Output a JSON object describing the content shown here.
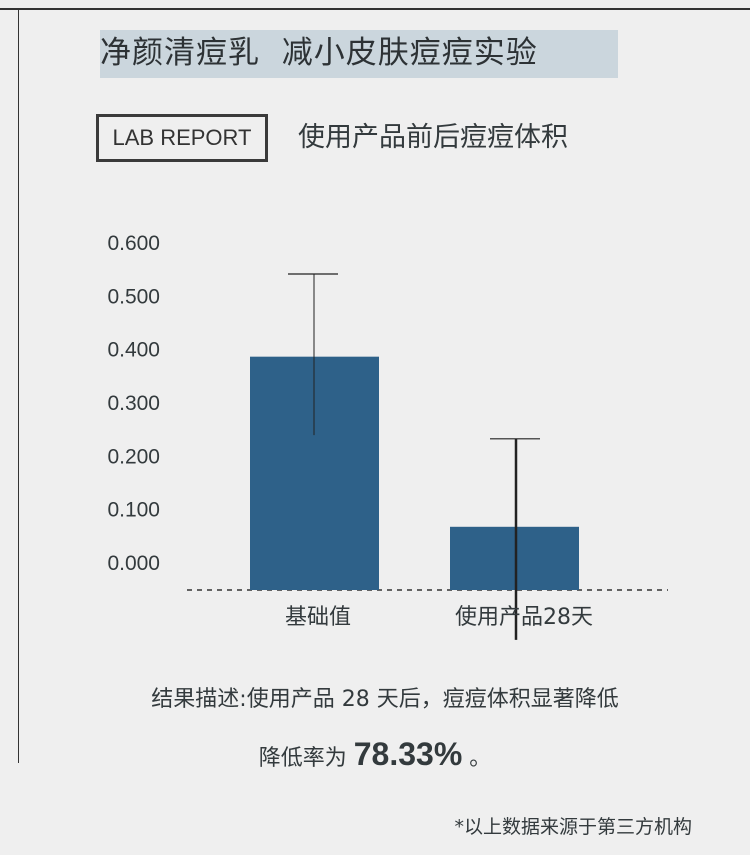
{
  "title": "净颜清痘乳  减小皮肤痘痘实验",
  "badge": "LAB REPORT",
  "subtitle": "使用产品前后痘痘体积",
  "chart_data": {
    "type": "bar",
    "categories": [
      "基础值",
      "使用产品28天"
    ],
    "values": [
      0.385,
      0.066
    ],
    "error_upper": [
      0.54,
      0.231
    ],
    "error_lower": [
      0.238,
      -0.146
    ],
    "yticks": [
      "0.600",
      "0.500",
      "0.400",
      "0.300",
      "0.200",
      "0.100",
      "0.000"
    ],
    "ylim": [
      0,
      0.6
    ],
    "bar_color": "#2e6189",
    "grid": false,
    "title": "",
    "xlabel": "",
    "ylabel": ""
  },
  "description": "结果描述:使用产品 28 天后，痘痘体积显著降低",
  "rate_prefix": "降低率为 ",
  "rate_value": "78.33%",
  "rate_suffix": " 。",
  "footnote": "*以上数据来源于第三方机构"
}
